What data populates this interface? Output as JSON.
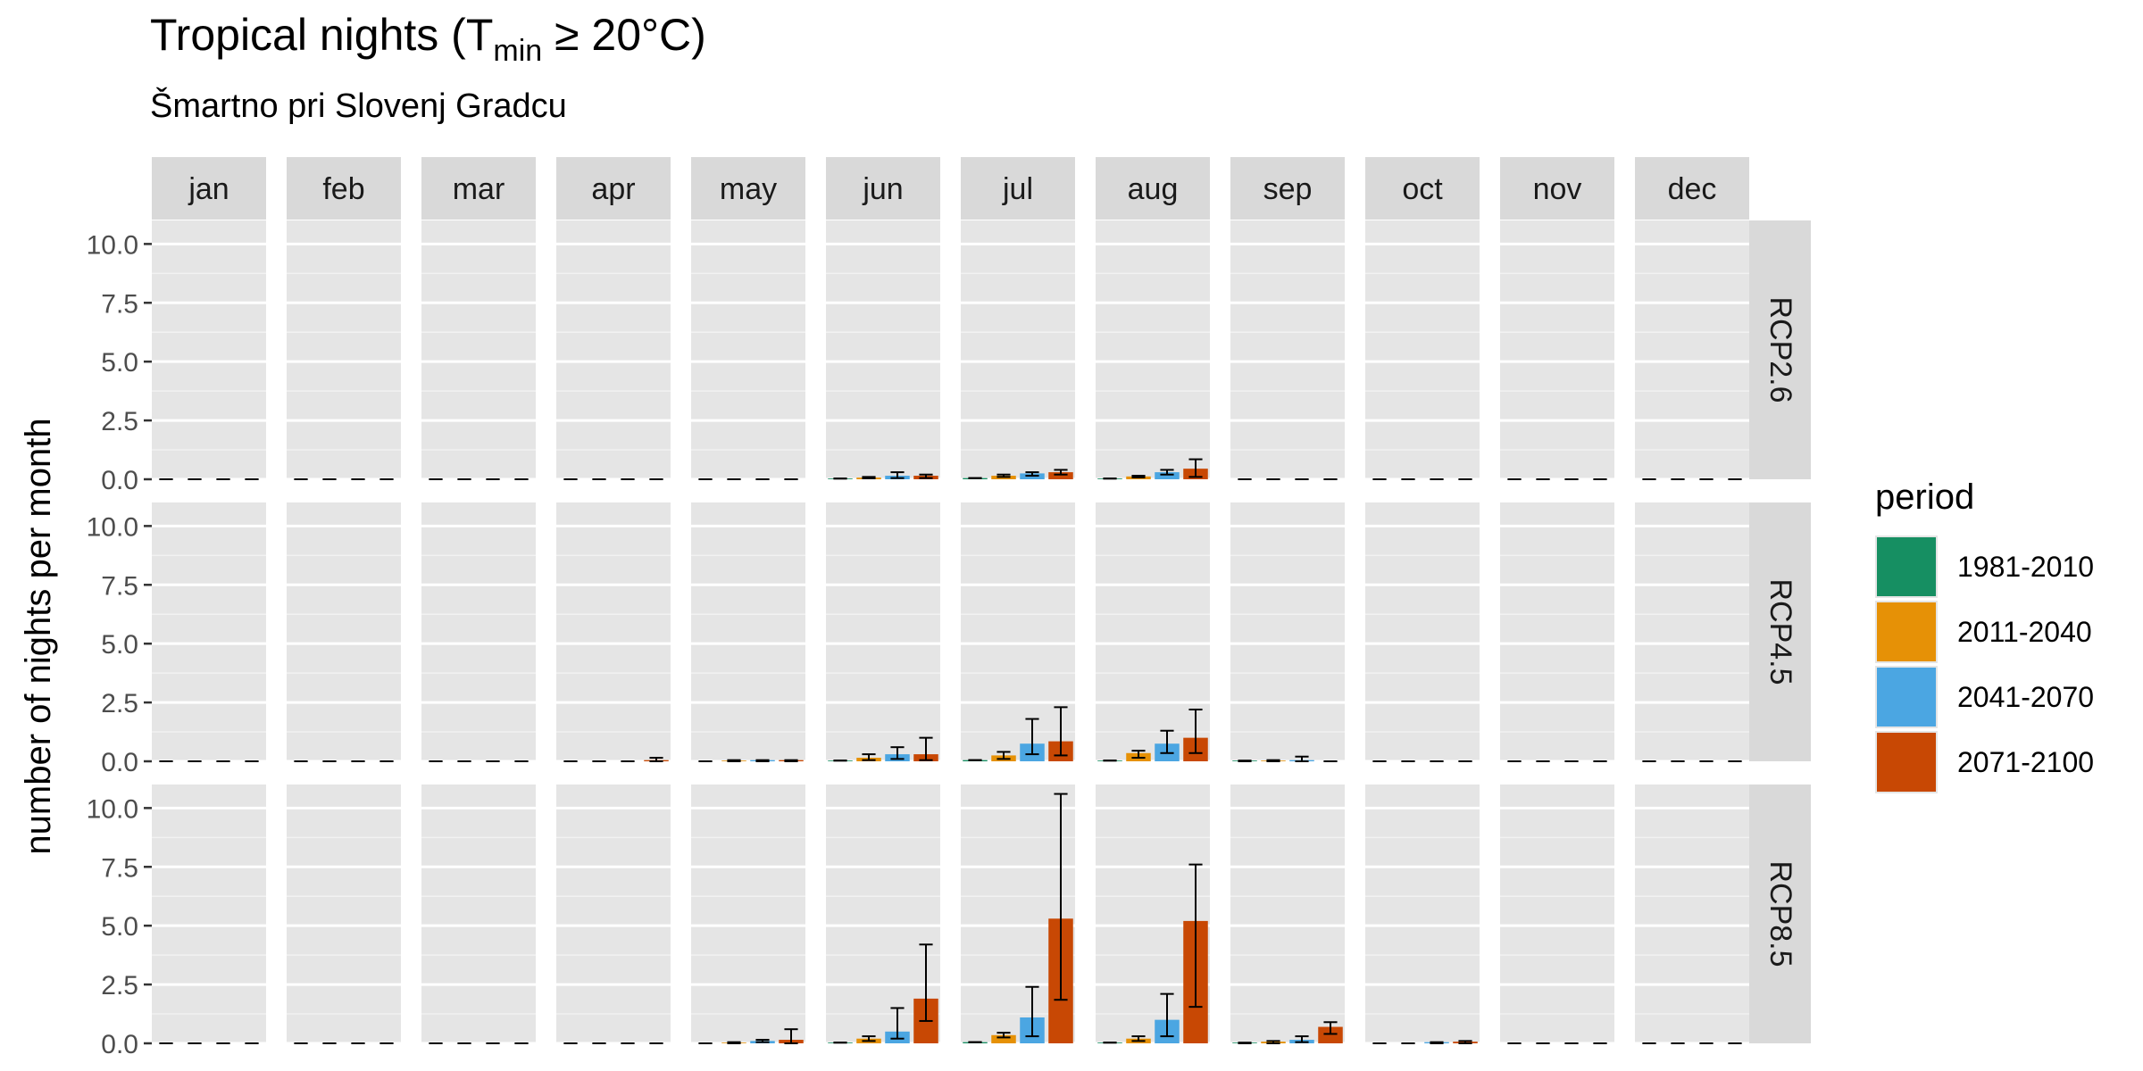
{
  "chart_data": {
    "type": "bar",
    "title": {
      "prefix": "Tropical nights (T",
      "subscript": "min",
      "suffix": " ≥ 20°C)"
    },
    "subtitle": "Šmartno pri Slovenj Gradcu",
    "ylabel": "number of nights per month",
    "xlabel": "",
    "ylim": [
      0,
      11
    ],
    "yticks": [
      "0.0",
      "2.5",
      "5.0",
      "7.5",
      "10.0"
    ],
    "ytick_values": [
      0,
      2.5,
      5,
      7.5,
      10
    ],
    "grid": true,
    "legend": {
      "title": "period",
      "position": "right",
      "entries": [
        "1981-2010",
        "2011-2040",
        "2041-2070",
        "2071-2100"
      ]
    },
    "colors": {
      "1981-2010": "#168f62",
      "2011-2040": "#e69106",
      "2041-2070": "#4ba6e2",
      "2071-2100": "#c84804",
      "panel_bg": "#e5e5e5",
      "strip_bg": "#d9d9d9"
    },
    "months": [
      "jan",
      "feb",
      "mar",
      "apr",
      "may",
      "jun",
      "jul",
      "aug",
      "sep",
      "oct",
      "nov",
      "dec"
    ],
    "scenarios": [
      "RCP2.6",
      "RCP4.5",
      "RCP8.5"
    ],
    "series": [
      {
        "scenario": "RCP2.6",
        "values": [
          [
            0,
            0,
            0,
            0
          ],
          [
            0,
            0,
            0,
            0
          ],
          [
            0,
            0,
            0,
            0
          ],
          [
            0,
            0,
            0,
            0
          ],
          [
            0,
            0,
            0,
            0
          ],
          [
            0.03,
            0.07,
            0.15,
            0.15
          ],
          [
            0.05,
            0.15,
            0.25,
            0.3
          ],
          [
            0.03,
            0.12,
            0.3,
            0.45
          ],
          [
            0,
            0,
            0,
            0
          ],
          [
            0,
            0,
            0,
            0
          ],
          [
            0,
            0,
            0,
            0
          ],
          [
            0,
            0,
            0,
            0
          ]
        ],
        "err_low": [
          [
            0,
            0,
            0,
            0
          ],
          [
            0,
            0,
            0,
            0
          ],
          [
            0,
            0,
            0,
            0
          ],
          [
            0,
            0,
            0,
            0
          ],
          [
            0,
            0,
            0,
            0
          ],
          [
            0.03,
            0.04,
            0.05,
            0.05
          ],
          [
            0.05,
            0.1,
            0.15,
            0.2
          ],
          [
            0.03,
            0.08,
            0.2,
            0.1
          ],
          [
            0,
            0,
            0,
            0
          ],
          [
            0,
            0,
            0,
            0
          ],
          [
            0,
            0,
            0,
            0
          ],
          [
            0,
            0,
            0,
            0
          ]
        ],
        "err_high": [
          [
            0,
            0,
            0,
            0
          ],
          [
            0,
            0,
            0,
            0
          ],
          [
            0,
            0,
            0,
            0
          ],
          [
            0,
            0,
            0,
            0
          ],
          [
            0,
            0,
            0,
            0
          ],
          [
            0.03,
            0.1,
            0.3,
            0.2
          ],
          [
            0.05,
            0.2,
            0.3,
            0.4
          ],
          [
            0.03,
            0.15,
            0.4,
            0.85
          ],
          [
            0,
            0,
            0,
            0
          ],
          [
            0,
            0,
            0,
            0
          ],
          [
            0,
            0,
            0,
            0
          ],
          [
            0,
            0,
            0,
            0
          ]
        ]
      },
      {
        "scenario": "RCP4.5",
        "values": [
          [
            0,
            0,
            0,
            0
          ],
          [
            0,
            0,
            0,
            0
          ],
          [
            0,
            0,
            0,
            0
          ],
          [
            0,
            0,
            0,
            0.05
          ],
          [
            0,
            0.03,
            0.05,
            0.05
          ],
          [
            0.03,
            0.15,
            0.3,
            0.3
          ],
          [
            0.05,
            0.25,
            0.75,
            0.85
          ],
          [
            0.03,
            0.35,
            0.75,
            1.0
          ],
          [
            0.03,
            0.03,
            0.05,
            0
          ],
          [
            0,
            0,
            0,
            0
          ],
          [
            0,
            0,
            0,
            0
          ],
          [
            0,
            0,
            0,
            0
          ]
        ],
        "err_low": [
          [
            0,
            0,
            0,
            0
          ],
          [
            0,
            0,
            0,
            0
          ],
          [
            0,
            0,
            0,
            0
          ],
          [
            0,
            0,
            0,
            0
          ],
          [
            0,
            0,
            0,
            0
          ],
          [
            0.03,
            0.05,
            0.1,
            0.05
          ],
          [
            0.05,
            0.1,
            0.3,
            0.25
          ],
          [
            0.03,
            0.15,
            0.35,
            0.35
          ],
          [
            0,
            0,
            0,
            0
          ],
          [
            0,
            0,
            0,
            0
          ],
          [
            0,
            0,
            0,
            0
          ],
          [
            0,
            0,
            0,
            0
          ]
        ],
        "err_high": [
          [
            0,
            0,
            0,
            0
          ],
          [
            0,
            0,
            0,
            0
          ],
          [
            0,
            0,
            0,
            0
          ],
          [
            0,
            0,
            0,
            0.15
          ],
          [
            0,
            0.05,
            0.05,
            0.05
          ],
          [
            0.03,
            0.3,
            0.6,
            1.0
          ],
          [
            0.05,
            0.4,
            1.8,
            2.3
          ],
          [
            0.03,
            0.45,
            1.3,
            2.2
          ],
          [
            0.03,
            0.05,
            0.2,
            0
          ],
          [
            0,
            0,
            0,
            0
          ],
          [
            0,
            0,
            0,
            0
          ],
          [
            0,
            0,
            0,
            0
          ]
        ]
      },
      {
        "scenario": "RCP8.5",
        "values": [
          [
            0,
            0,
            0,
            0
          ],
          [
            0,
            0,
            0,
            0
          ],
          [
            0,
            0,
            0,
            0
          ],
          [
            0,
            0,
            0,
            0
          ],
          [
            0,
            0.03,
            0.1,
            0.15
          ],
          [
            0.03,
            0.2,
            0.5,
            1.9
          ],
          [
            0.05,
            0.35,
            1.1,
            5.3
          ],
          [
            0.03,
            0.2,
            1.0,
            5.2
          ],
          [
            0.03,
            0.07,
            0.15,
            0.7
          ],
          [
            0,
            0,
            0.05,
            0.07
          ],
          [
            0,
            0,
            0,
            0
          ],
          [
            0,
            0,
            0,
            0
          ]
        ],
        "err_low": [
          [
            0,
            0,
            0,
            0
          ],
          [
            0,
            0,
            0,
            0
          ],
          [
            0,
            0,
            0,
            0
          ],
          [
            0,
            0,
            0,
            0
          ],
          [
            0,
            0,
            0.05,
            0
          ],
          [
            0.03,
            0.1,
            0.2,
            0.95
          ],
          [
            0.05,
            0.25,
            0.3,
            1.85
          ],
          [
            0.03,
            0.1,
            0.3,
            1.55
          ],
          [
            0,
            0,
            0.05,
            0.4
          ],
          [
            0,
            0,
            0,
            0
          ],
          [
            0,
            0,
            0,
            0
          ],
          [
            0,
            0,
            0,
            0
          ]
        ],
        "err_high": [
          [
            0,
            0,
            0,
            0
          ],
          [
            0,
            0,
            0,
            0
          ],
          [
            0,
            0,
            0,
            0
          ],
          [
            0,
            0,
            0,
            0
          ],
          [
            0,
            0.05,
            0.15,
            0.6
          ],
          [
            0.03,
            0.3,
            1.5,
            4.2
          ],
          [
            0.05,
            0.45,
            2.4,
            10.6
          ],
          [
            0.03,
            0.3,
            2.1,
            7.6
          ],
          [
            0.03,
            0.1,
            0.3,
            0.9
          ],
          [
            0,
            0,
            0.05,
            0.1
          ],
          [
            0,
            0,
            0,
            0
          ],
          [
            0,
            0,
            0,
            0
          ]
        ]
      }
    ]
  }
}
